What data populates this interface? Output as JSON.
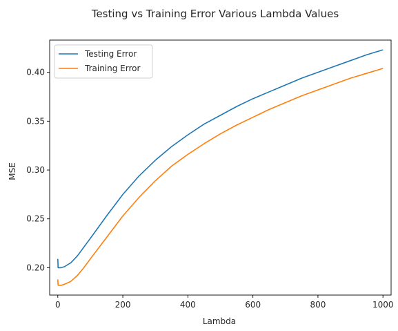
{
  "chart_data": {
    "type": "line",
    "title": "Testing vs Training Error Various Lambda Values",
    "xlabel": "Lambda",
    "ylabel": "MSE",
    "xlim": [
      -25,
      1025
    ],
    "ylim": [
      0.172,
      0.433
    ],
    "xticks": [
      0,
      200,
      400,
      600,
      800,
      1000
    ],
    "xtick_labels": [
      "0",
      "200",
      "400",
      "600",
      "800",
      "1000"
    ],
    "yticks": [
      0.2,
      0.25,
      0.3,
      0.35,
      0.4
    ],
    "ytick_labels": [
      "0.20",
      "0.25",
      "0.30",
      "0.35",
      "0.40"
    ],
    "grid": false,
    "legend_position": "top-left",
    "series": [
      {
        "name": "Testing Error",
        "color": "#1f77b4",
        "points": [
          [
            0,
            0.209
          ],
          [
            1,
            0.2
          ],
          [
            5,
            0.2
          ],
          [
            10,
            0.2
          ],
          [
            20,
            0.201
          ],
          [
            40,
            0.205
          ],
          [
            60,
            0.212
          ],
          [
            80,
            0.221
          ],
          [
            100,
            0.23
          ],
          [
            150,
            0.253
          ],
          [
            200,
            0.275
          ],
          [
            250,
            0.294
          ],
          [
            300,
            0.31
          ],
          [
            350,
            0.324
          ],
          [
            400,
            0.336
          ],
          [
            450,
            0.347
          ],
          [
            500,
            0.356
          ],
          [
            550,
            0.365
          ],
          [
            600,
            0.373
          ],
          [
            650,
            0.38
          ],
          [
            700,
            0.387
          ],
          [
            750,
            0.394
          ],
          [
            800,
            0.4
          ],
          [
            850,
            0.406
          ],
          [
            900,
            0.412
          ],
          [
            950,
            0.418
          ],
          [
            1000,
            0.423
          ]
        ]
      },
      {
        "name": "Training Error",
        "color": "#ff7f0e",
        "points": [
          [
            0,
            0.188
          ],
          [
            1,
            0.182
          ],
          [
            5,
            0.182
          ],
          [
            10,
            0.182
          ],
          [
            20,
            0.183
          ],
          [
            40,
            0.186
          ],
          [
            60,
            0.192
          ],
          [
            80,
            0.2
          ],
          [
            100,
            0.209
          ],
          [
            150,
            0.231
          ],
          [
            200,
            0.253
          ],
          [
            250,
            0.272
          ],
          [
            300,
            0.289
          ],
          [
            350,
            0.304
          ],
          [
            400,
            0.316
          ],
          [
            450,
            0.327
          ],
          [
            500,
            0.337
          ],
          [
            550,
            0.346
          ],
          [
            600,
            0.354
          ],
          [
            650,
            0.362
          ],
          [
            700,
            0.369
          ],
          [
            750,
            0.376
          ],
          [
            800,
            0.382
          ],
          [
            850,
            0.388
          ],
          [
            900,
            0.394
          ],
          [
            950,
            0.399
          ],
          [
            1000,
            0.404
          ]
        ]
      }
    ]
  }
}
